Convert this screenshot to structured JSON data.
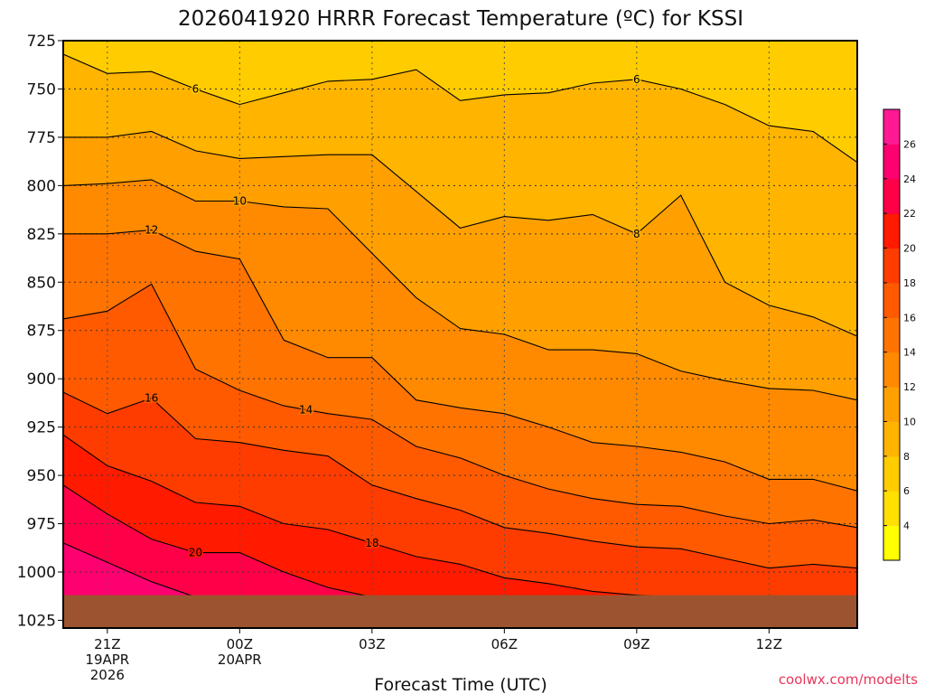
{
  "chart_data": {
    "type": "heatmap",
    "title": "2026041920 HRRR Forecast Temperature (ºC) for KSSI",
    "xlabel": "Forecast Time (UTC)",
    "ylabel": "",
    "credit": "coolwx.com/modelts",
    "credit_color": "#e8355a",
    "x_range": [
      -1,
      17
    ],
    "y_range": [
      725,
      1029
    ],
    "y_ticks": [
      725,
      750,
      775,
      800,
      825,
      850,
      875,
      900,
      925,
      950,
      975,
      1000,
      1025
    ],
    "x_ticks": [
      {
        "x": 0,
        "lines": [
          "21Z",
          "19APR",
          "2026"
        ]
      },
      {
        "x": 3,
        "lines": [
          "00Z",
          "20APR"
        ]
      },
      {
        "x": 6,
        "lines": [
          "03Z"
        ]
      },
      {
        "x": 9,
        "lines": [
          "06Z"
        ]
      },
      {
        "x": 12,
        "lines": [
          "09Z"
        ]
      },
      {
        "x": 15,
        "lines": [
          "12Z"
        ]
      }
    ],
    "colorbar": {
      "levels": [
        2,
        4,
        6,
        8,
        10,
        12,
        14,
        16,
        18,
        20,
        22,
        24,
        26,
        28
      ],
      "colors": [
        "#ffff00",
        "#ffe000",
        "#ffcc00",
        "#ffb400",
        "#ffa000",
        "#ff8a00",
        "#ff7300",
        "#ff5a00",
        "#ff3c00",
        "#ff1a00",
        "#ff0048",
        "#ff0070",
        "#ff1a94"
      ],
      "tick_labels": [
        "4",
        "6",
        "8",
        "10",
        "12",
        "14",
        "16",
        "18",
        "20",
        "22",
        "24",
        "26"
      ]
    },
    "ground": {
      "color": "#9c5430",
      "surface_pressure": 1012
    },
    "x_points": [
      -1,
      0,
      1,
      2,
      3,
      4,
      5,
      6,
      7,
      8,
      9,
      10,
      11,
      12,
      13,
      14,
      15,
      16,
      17
    ],
    "isotherms": [
      {
        "level": 6,
        "label_x": 2.0,
        "label_x2": 12.0,
        "p": [
          732,
          742,
          741,
          750,
          758,
          752,
          746,
          745,
          740,
          756,
          753,
          752,
          747,
          745,
          750,
          758,
          769,
          772,
          788
        ]
      },
      {
        "level": 8,
        "label_x": 12.0,
        "p": [
          775,
          775,
          772,
          782,
          786,
          785,
          784,
          784,
          803,
          822,
          816,
          818,
          815,
          825,
          805,
          850,
          862,
          868,
          878
        ]
      },
      {
        "level": 10,
        "label_x": 3.0,
        "p": [
          800,
          799,
          797,
          808,
          808,
          811,
          812,
          835,
          858,
          874,
          877,
          885,
          885,
          887,
          896,
          901,
          905,
          906,
          911
        ]
      },
      {
        "level": 12,
        "label_x": 1.0,
        "p": [
          825,
          825,
          823,
          834,
          838,
          880,
          889,
          889,
          911,
          915,
          918,
          925,
          933,
          935,
          938,
          943,
          952,
          952,
          958
        ]
      },
      {
        "level": 14,
        "label_x": 4.5,
        "p": [
          869,
          865,
          851,
          895,
          906,
          914,
          918,
          921,
          935,
          941,
          950,
          957,
          962,
          965,
          966,
          971,
          975,
          973,
          977
        ]
      },
      {
        "level": 16,
        "label_x": 1.0,
        "p": [
          907,
          918,
          910,
          931,
          933,
          937,
          940,
          955,
          962,
          968,
          977,
          980,
          984,
          987,
          988,
          993,
          998,
          996,
          998
        ]
      },
      {
        "level": 18,
        "label_x": 6.0,
        "p": [
          929,
          945,
          953,
          964,
          966,
          975,
          978,
          985,
          992,
          996,
          1003,
          1006,
          1010,
          1012,
          1013,
          1013,
          1013,
          1013,
          1013
        ]
      },
      {
        "level": 20,
        "label_x": 2.0,
        "p": [
          955,
          970,
          983,
          990,
          990,
          1000,
          1008,
          1013,
          1013,
          1013,
          1013,
          1013,
          1013,
          1013,
          1013,
          1013,
          1013,
          1013,
          1013
        ]
      },
      {
        "level": 22,
        "label_x": -9,
        "p": [
          985,
          995,
          1005,
          1013,
          1013,
          1013,
          1013,
          1013,
          1013,
          1013,
          1013,
          1013,
          1013,
          1013,
          1013,
          1013,
          1013,
          1013,
          1013
        ]
      }
    ]
  }
}
